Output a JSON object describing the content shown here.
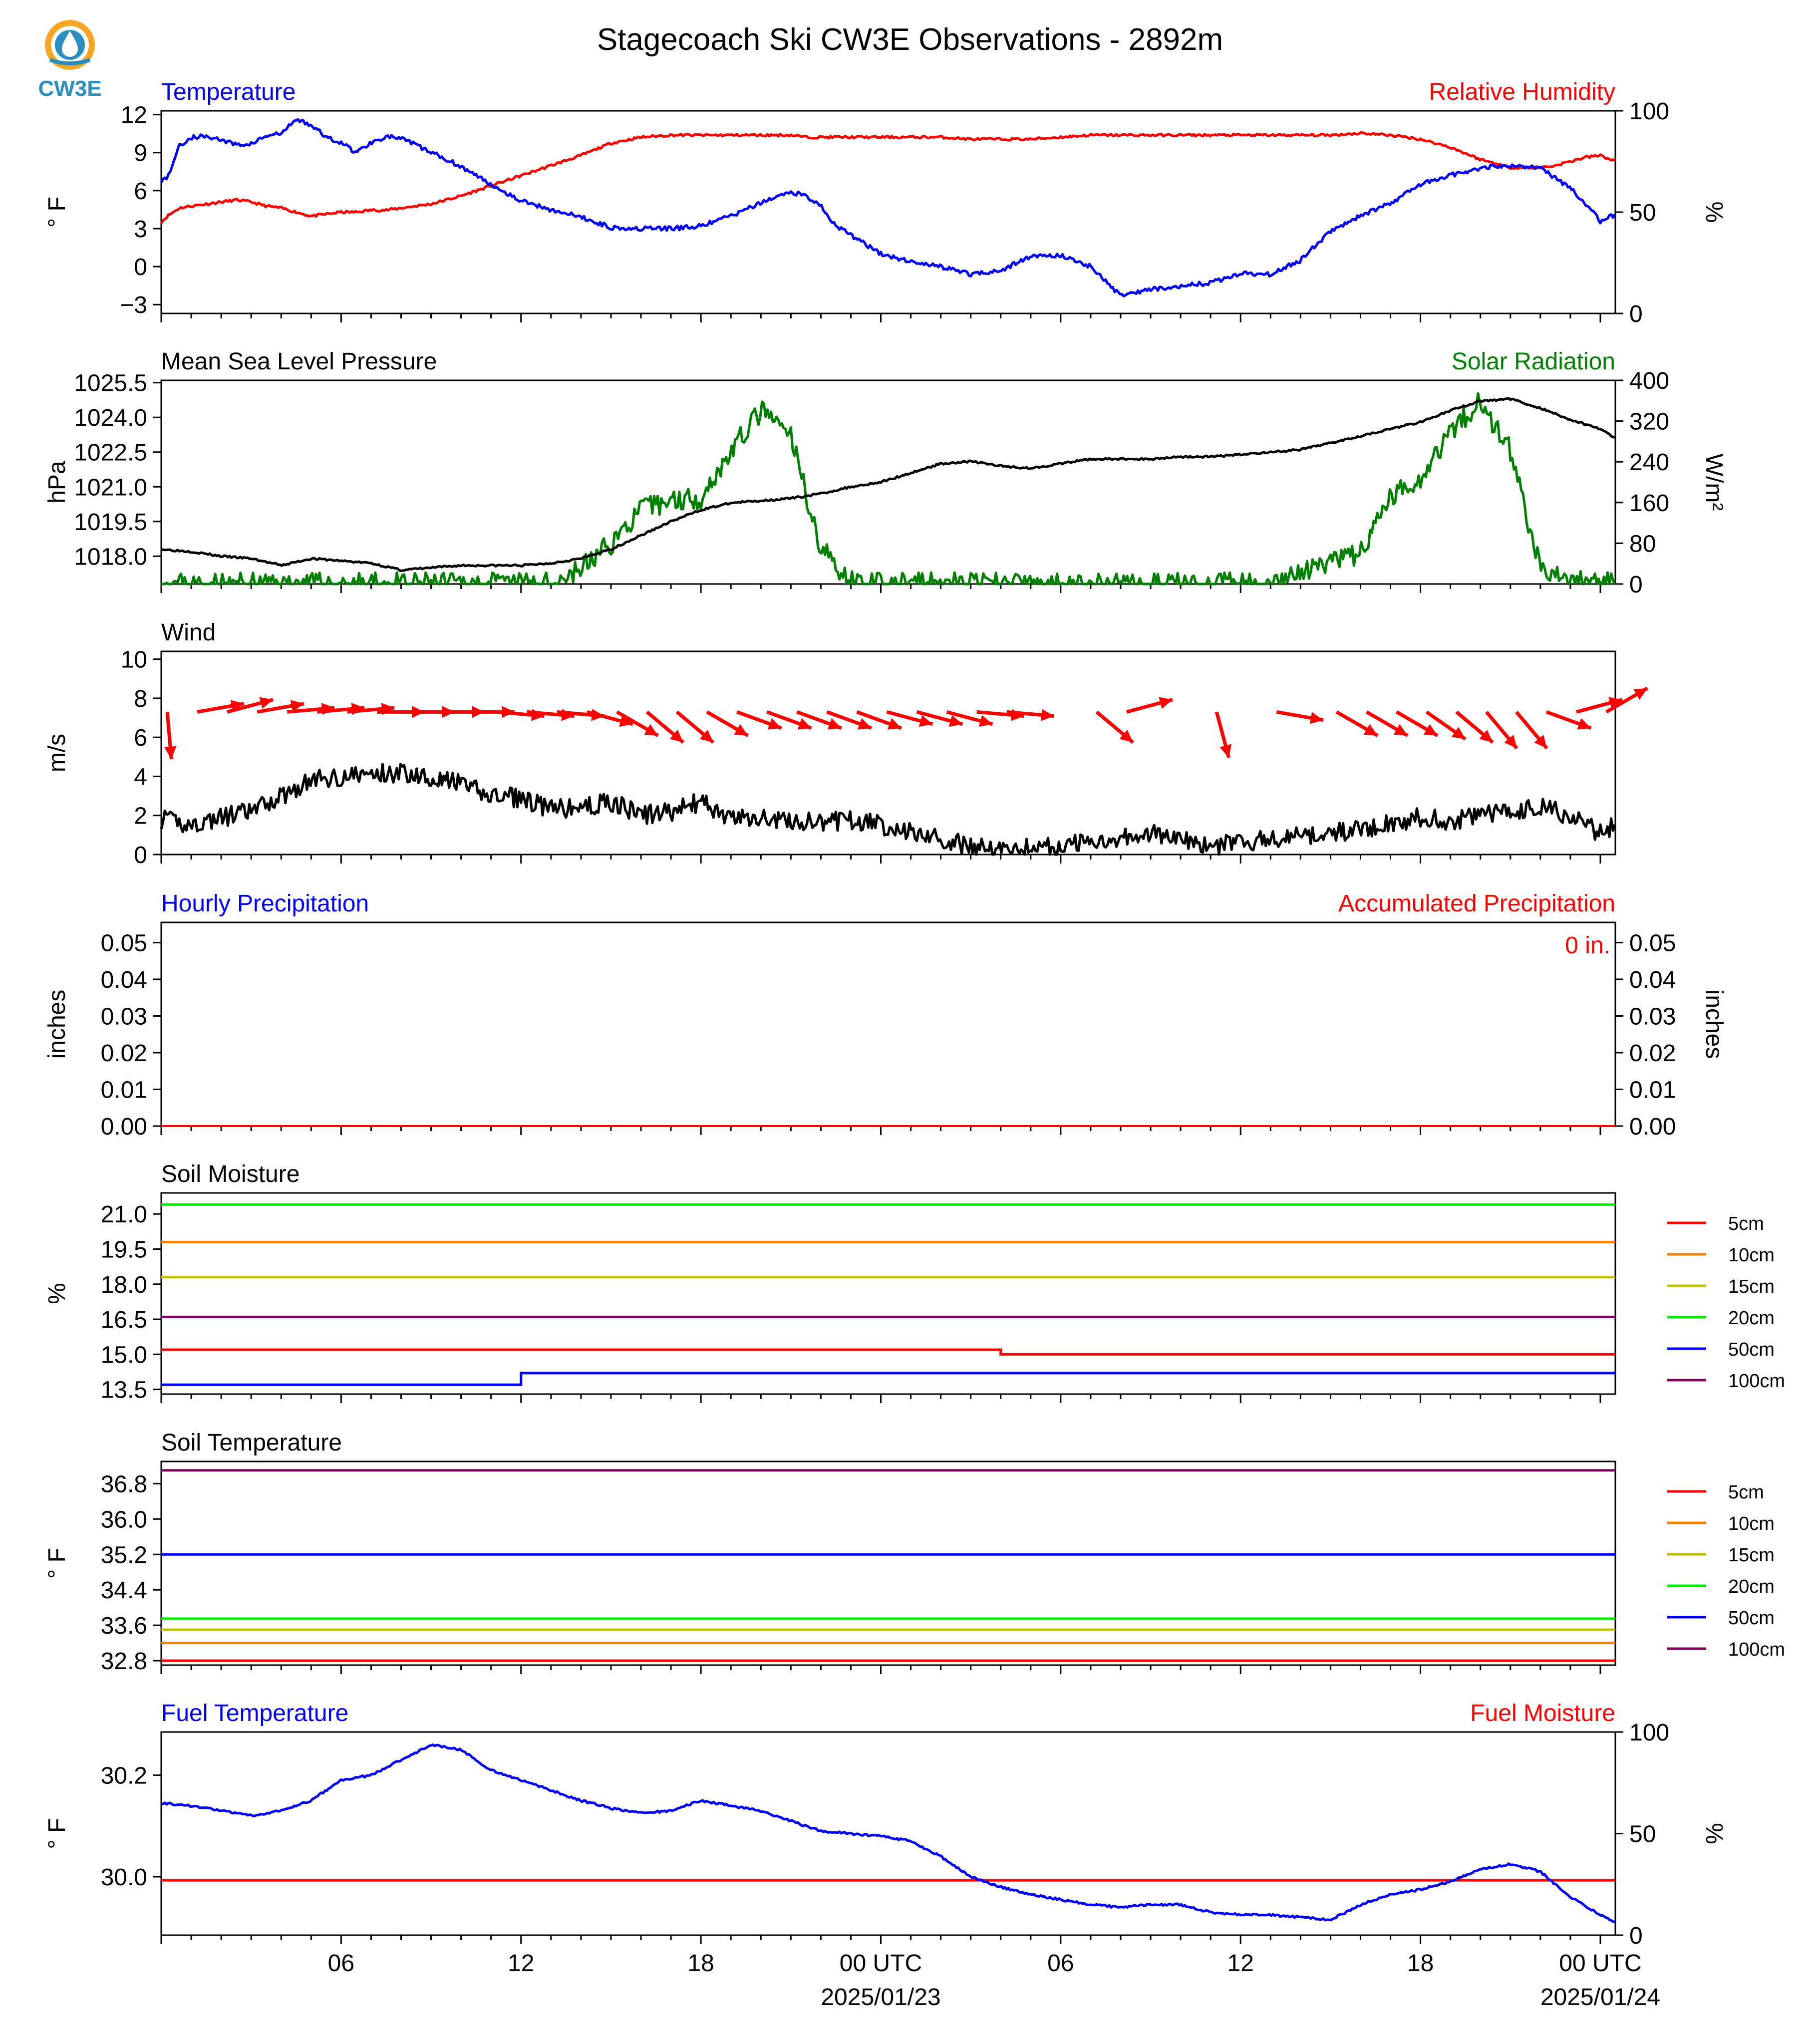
{
  "figure": {
    "title": "Stagecoach Ski CW3E Observations - 2892m",
    "logo_text": "CW3E",
    "x_ticks": [
      "06",
      "12",
      "18",
      "00 UTC",
      "06",
      "12",
      "18",
      "00 UTC"
    ],
    "date_labels": [
      "2025/01/23",
      "2025/01/24"
    ]
  },
  "chart_data": [
    {
      "id": "temperature_rh",
      "type": "line",
      "title_left": "Temperature",
      "title_right": "Relative Humidity",
      "ylabel_left": "° F",
      "ylabel_right": "%",
      "ylim_left": [
        -3.7,
        12.3
      ],
      "ylim_right": [
        0,
        100
      ],
      "yticks_left": [
        "12",
        "9",
        "6",
        "3",
        "0",
        "−3"
      ],
      "yticks_right": [
        "100",
        "50",
        "0"
      ],
      "colors": {
        "left": "#0000ff",
        "right": "#ff0000"
      },
      "x_hours": [
        0.0,
        0.2,
        0.6,
        1.0,
        1.5,
        2.0,
        2.5,
        3.0,
        3.5,
        4.0,
        4.5,
        5.0,
        5.5,
        6.0,
        6.5,
        7.0,
        7.5,
        8.0,
        8.5,
        9.0,
        9.5,
        10.0,
        11.0,
        12.0,
        13.0,
        14.0,
        15.0,
        16.0,
        17.0,
        18.0,
        19.0,
        20.0,
        20.5,
        21.0,
        21.5,
        22.0,
        22.5,
        23.0,
        24.0,
        25.0,
        26.0,
        27.0,
        28.0,
        29.0,
        30.0,
        31.0,
        32.0,
        33.0,
        34.0,
        35.0,
        36.0,
        37.0,
        38.0,
        39.0,
        40.0,
        41.0,
        42.0,
        43.0,
        44.0,
        45.0,
        46.0,
        46.5,
        47.0,
        47.5,
        48.0,
        48.5
      ],
      "series": [
        {
          "name": "Temperature",
          "axis": "left",
          "values": [
            6.8,
            7.0,
            9.5,
            10.2,
            10.3,
            10.0,
            9.6,
            9.7,
            10.3,
            10.5,
            11.6,
            11.2,
            10.2,
            9.8,
            9.0,
            9.8,
            10.3,
            10.1,
            9.6,
            9.0,
            8.5,
            7.9,
            6.5,
            5.2,
            4.5,
            3.9,
            3.1,
            3.0,
            3.0,
            3.2,
            4.0,
            5.0,
            5.5,
            5.9,
            5.6,
            4.8,
            3.2,
            2.5,
            1.0,
            0.4,
            0.0,
            -0.6,
            -0.3,
            0.8,
            0.9,
            0.0,
            -2.3,
            -1.8,
            -1.5,
            -1.3,
            -0.5,
            -0.6,
            0.5,
            2.8,
            4.0,
            5.0,
            6.5,
            7.2,
            7.8,
            8.0,
            7.8,
            7.0,
            6.2,
            5.0,
            3.6,
            4.1
          ]
        },
        {
          "name": "Relative Humidity",
          "axis": "right",
          "values": [
            45,
            48,
            52,
            53,
            54,
            55,
            56,
            55,
            53,
            52,
            50,
            48,
            49,
            50,
            50,
            51,
            51,
            52,
            53,
            54,
            56,
            58,
            63,
            68,
            73,
            78,
            84,
            87,
            88,
            88,
            88,
            88,
            88,
            88,
            87,
            87,
            87,
            87,
            87,
            87,
            87,
            86,
            86,
            86,
            87,
            88,
            88,
            88,
            88,
            88,
            88,
            88,
            88,
            88,
            89,
            88,
            86,
            82,
            76,
            72,
            72,
            73,
            75,
            77,
            78,
            75
          ]
        }
      ]
    },
    {
      "id": "pressure_solar",
      "type": "line",
      "title_left": "Mean Sea Level Pressure",
      "title_right": "Solar Radiation",
      "ylabel_left": "hPa",
      "ylabel_right": "W/m²",
      "ylim_left": [
        1016.8,
        1025.6
      ],
      "ylim_right": [
        0,
        400
      ],
      "yticks_left": [
        "1025.5",
        "1024.0",
        "1022.5",
        "1021.0",
        "1019.5",
        "1018.0"
      ],
      "yticks_right": [
        "400",
        "320",
        "240",
        "160",
        "80",
        "0"
      ],
      "colors": {
        "left": "#000000",
        "right": "#008000"
      },
      "x_hours": [
        0,
        1,
        2,
        3,
        4,
        5,
        6,
        7,
        8,
        9,
        10,
        11,
        12,
        13,
        14,
        15,
        16,
        17,
        18,
        19,
        20,
        21,
        22,
        23,
        24,
        25,
        26,
        27,
        28,
        29,
        30,
        31,
        32,
        33,
        34,
        35,
        36,
        37,
        38,
        39,
        40,
        41,
        42,
        43,
        44,
        45,
        46,
        47,
        48,
        48.5
      ],
      "series": [
        {
          "name": "Mean Sea Level Pressure",
          "axis": "left",
          "values": [
            1018.3,
            1018.2,
            1018.0,
            1017.9,
            1017.6,
            1017.9,
            1017.8,
            1017.7,
            1017.4,
            1017.5,
            1017.6,
            1017.6,
            1017.6,
            1017.7,
            1017.9,
            1018.3,
            1018.9,
            1019.5,
            1020.0,
            1020.3,
            1020.4,
            1020.5,
            1020.7,
            1021.0,
            1021.2,
            1021.6,
            1022.0,
            1022.1,
            1021.9,
            1021.8,
            1022.0,
            1022.2,
            1022.2,
            1022.2,
            1022.3,
            1022.3,
            1022.4,
            1022.5,
            1022.6,
            1022.9,
            1023.2,
            1023.5,
            1023.8,
            1024.3,
            1024.7,
            1024.8,
            1024.4,
            1023.9,
            1023.5,
            1023.1
          ]
        },
        {
          "name": "Solar Radiation",
          "axis": "right",
          "values": [
            0,
            0,
            0,
            0,
            0,
            0,
            0,
            0,
            0,
            0,
            0,
            0,
            0,
            0,
            30,
            80,
            145,
            165,
            170,
            260,
            340,
            290,
            70,
            5,
            0,
            0,
            0,
            0,
            0,
            0,
            0,
            0,
            0,
            0,
            0,
            0,
            0,
            0,
            20,
            40,
            60,
            170,
            210,
            300,
            360,
            260,
            30,
            5,
            0,
            0
          ]
        }
      ]
    },
    {
      "id": "wind",
      "type": "line",
      "title_left": "Wind",
      "ylabel_left": "m/s",
      "ylim_left": [
        0,
        10.4
      ],
      "yticks_left": [
        "10",
        "8",
        "6",
        "4",
        "2",
        "0"
      ],
      "colors": {
        "speed": "#000000",
        "barbs": "#ff0000"
      },
      "x_hours": [
        0,
        1,
        2,
        3,
        4,
        5,
        6,
        7,
        8,
        9,
        10,
        11,
        12,
        13,
        14,
        15,
        16,
        17,
        18,
        19,
        20,
        21,
        22,
        23,
        24,
        25,
        26,
        27,
        28,
        29,
        30,
        31,
        32,
        33,
        34,
        35,
        36,
        37,
        38,
        39,
        40,
        41,
        42,
        43,
        44,
        45,
        46,
        47,
        48,
        48.5
      ],
      "series": [
        {
          "name": "Wind Speed",
          "values": [
            1.8,
            1.5,
            1.9,
            2.2,
            3.0,
            3.8,
            4.0,
            4.1,
            4.2,
            4.0,
            3.6,
            3.0,
            2.9,
            2.3,
            2.4,
            2.7,
            2.0,
            2.2,
            2.7,
            1.8,
            1.9,
            1.7,
            1.6,
            1.8,
            1.5,
            1.2,
            0.8,
            0.4,
            0.3,
            0.4,
            0.4,
            0.7,
            0.9,
            1.1,
            0.7,
            0.4,
            0.6,
            0.8,
            0.9,
            1.1,
            1.3,
            1.6,
            1.9,
            1.7,
            2.0,
            2.2,
            2.5,
            2.0,
            1.1,
            1.5
          ]
        }
      ],
      "wind_direction_hours": [
        0,
        1,
        2,
        3,
        4,
        5,
        6,
        7,
        8,
        9,
        10,
        11,
        12,
        13,
        14,
        15,
        16,
        17,
        18,
        19,
        20,
        21,
        22,
        23,
        24,
        25,
        26,
        27,
        28,
        31,
        32,
        35,
        37,
        39,
        40,
        41,
        42,
        43,
        44,
        45,
        46,
        47,
        48
      ],
      "wind_direction_deg": [
        355,
        260,
        255,
        260,
        265,
        265,
        265,
        270,
        270,
        270,
        270,
        275,
        275,
        275,
        285,
        300,
        310,
        310,
        300,
        290,
        290,
        290,
        290,
        290,
        285,
        285,
        285,
        275,
        275,
        310,
        255,
        345,
        280,
        300,
        300,
        300,
        305,
        310,
        320,
        320,
        290,
        255,
        240
      ]
    },
    {
      "id": "precipitation",
      "type": "line",
      "title_left": "Hourly Precipitation",
      "title_right": "Accumulated Precipitation",
      "ylabel_left": "inches",
      "ylabel_right": "inches",
      "ylim_left": [
        0,
        0.0555
      ],
      "ylim_right": [
        0,
        0.0555
      ],
      "yticks_left": [
        "0.05",
        "0.04",
        "0.03",
        "0.02",
        "0.01",
        "0.00"
      ],
      "yticks_right": [
        "0.05",
        "0.04",
        "0.03",
        "0.02",
        "0.01",
        "0.00"
      ],
      "annotation": "0 in.",
      "colors": {
        "left": "#0000ff",
        "right": "#ff0000"
      },
      "x_hours": [
        0,
        48.5
      ],
      "series": [
        {
          "name": "Hourly Precipitation",
          "values": [
            0,
            0
          ]
        },
        {
          "name": "Accumulated Precipitation",
          "values": [
            0,
            0
          ]
        }
      ]
    },
    {
      "id": "soil_moisture",
      "type": "line",
      "title_left": "Soil Moisture",
      "ylabel_left": "%",
      "ylim_left": [
        13.3,
        21.9
      ],
      "yticks_left": [
        "21.0",
        "19.5",
        "18.0",
        "16.5",
        "15.0",
        "13.5"
      ],
      "legend": [
        "5cm",
        "10cm",
        "15cm",
        "20cm",
        "50cm",
        "100cm"
      ],
      "legend_position": "right",
      "series": [
        {
          "name": "5cm",
          "color": "#ff0000",
          "value": 15.2,
          "to_value": 15.0,
          "step_hour": 28
        },
        {
          "name": "10cm",
          "color": "#ff8000",
          "value": 19.8
        },
        {
          "name": "15cm",
          "color": "#c0c000",
          "value": 18.3
        },
        {
          "name": "20cm",
          "color": "#00ee00",
          "value": 21.4
        },
        {
          "name": "50cm",
          "color": "#0000ff",
          "value": 13.7,
          "to_value": 14.2,
          "step_hour": 12
        },
        {
          "name": "100cm",
          "color": "#800060",
          "value": 16.6
        }
      ]
    },
    {
      "id": "soil_temperature",
      "type": "line",
      "title_left": "Soil Temperature",
      "ylabel_left": "° F",
      "ylim_left": [
        32.7,
        37.3
      ],
      "yticks_left": [
        "36.8",
        "36.0",
        "35.2",
        "34.4",
        "33.6",
        "32.8"
      ],
      "legend": [
        "5cm",
        "10cm",
        "15cm",
        "20cm",
        "50cm",
        "100cm"
      ],
      "legend_position": "right",
      "series": [
        {
          "name": "5cm",
          "color": "#ff0000",
          "value": 32.8
        },
        {
          "name": "10cm",
          "color": "#ff8000",
          "value": 33.2
        },
        {
          "name": "15cm",
          "color": "#c0c000",
          "value": 33.5
        },
        {
          "name": "20cm",
          "color": "#00ee00",
          "value": 33.75
        },
        {
          "name": "50cm",
          "color": "#0000ff",
          "value": 35.2
        },
        {
          "name": "100cm",
          "color": "#800060",
          "value": 37.1
        }
      ]
    },
    {
      "id": "fuel",
      "type": "line",
      "title_left": "Fuel Temperature",
      "title_right": "Fuel Moisture",
      "ylabel_left": "° F",
      "ylabel_right": "%",
      "ylim_left": [
        29.885,
        30.285
      ],
      "ylim_right": [
        0,
        100
      ],
      "yticks_left": [
        "30.2",
        "30.0"
      ],
      "yticks_right": [
        "100",
        "50",
        "0"
      ],
      "colors": {
        "left": "#0000ff",
        "right": "#ff0000"
      },
      "x_hours": [
        0,
        1,
        2,
        3,
        4,
        5,
        6,
        7,
        8,
        9,
        10,
        11,
        12,
        13,
        14,
        15,
        16,
        17,
        18,
        19,
        20,
        21,
        22,
        23,
        24,
        25,
        26,
        27,
        28,
        29,
        30,
        31,
        32,
        33,
        34,
        35,
        36,
        37,
        38,
        39,
        40,
        41,
        42,
        43,
        44,
        45,
        46,
        47,
        48,
        48.5
      ],
      "series": [
        {
          "name": "Fuel Temperature",
          "axis": "left",
          "values": [
            30.145,
            30.14,
            30.13,
            30.12,
            30.13,
            30.15,
            30.19,
            30.2,
            30.23,
            30.26,
            30.25,
            30.21,
            30.19,
            30.17,
            30.15,
            30.135,
            30.125,
            30.13,
            30.15,
            30.14,
            30.13,
            30.11,
            30.09,
            30.085,
            30.08,
            30.07,
            30.04,
            30.0,
            29.98,
            29.965,
            29.955,
            29.945,
            29.94,
            29.945,
            29.945,
            29.93,
            29.925,
            29.925,
            29.92,
            29.915,
            29.945,
            29.965,
            29.975,
            29.99,
            30.015,
            30.025,
            30.01,
            29.96,
            29.925,
            29.91
          ]
        },
        {
          "name": "Fuel Moisture",
          "axis": "right",
          "values": [
            27,
            27,
            27,
            27,
            27,
            27,
            27,
            27,
            27,
            27,
            27,
            27,
            27,
            27,
            27,
            27,
            27,
            27,
            27,
            27,
            27,
            27,
            27,
            27,
            27,
            27,
            27,
            27,
            27,
            27,
            27,
            27,
            27,
            27,
            27,
            27,
            27,
            27,
            27,
            27,
            27,
            27,
            27,
            27,
            27,
            27,
            27,
            27,
            27,
            27
          ]
        }
      ]
    }
  ]
}
